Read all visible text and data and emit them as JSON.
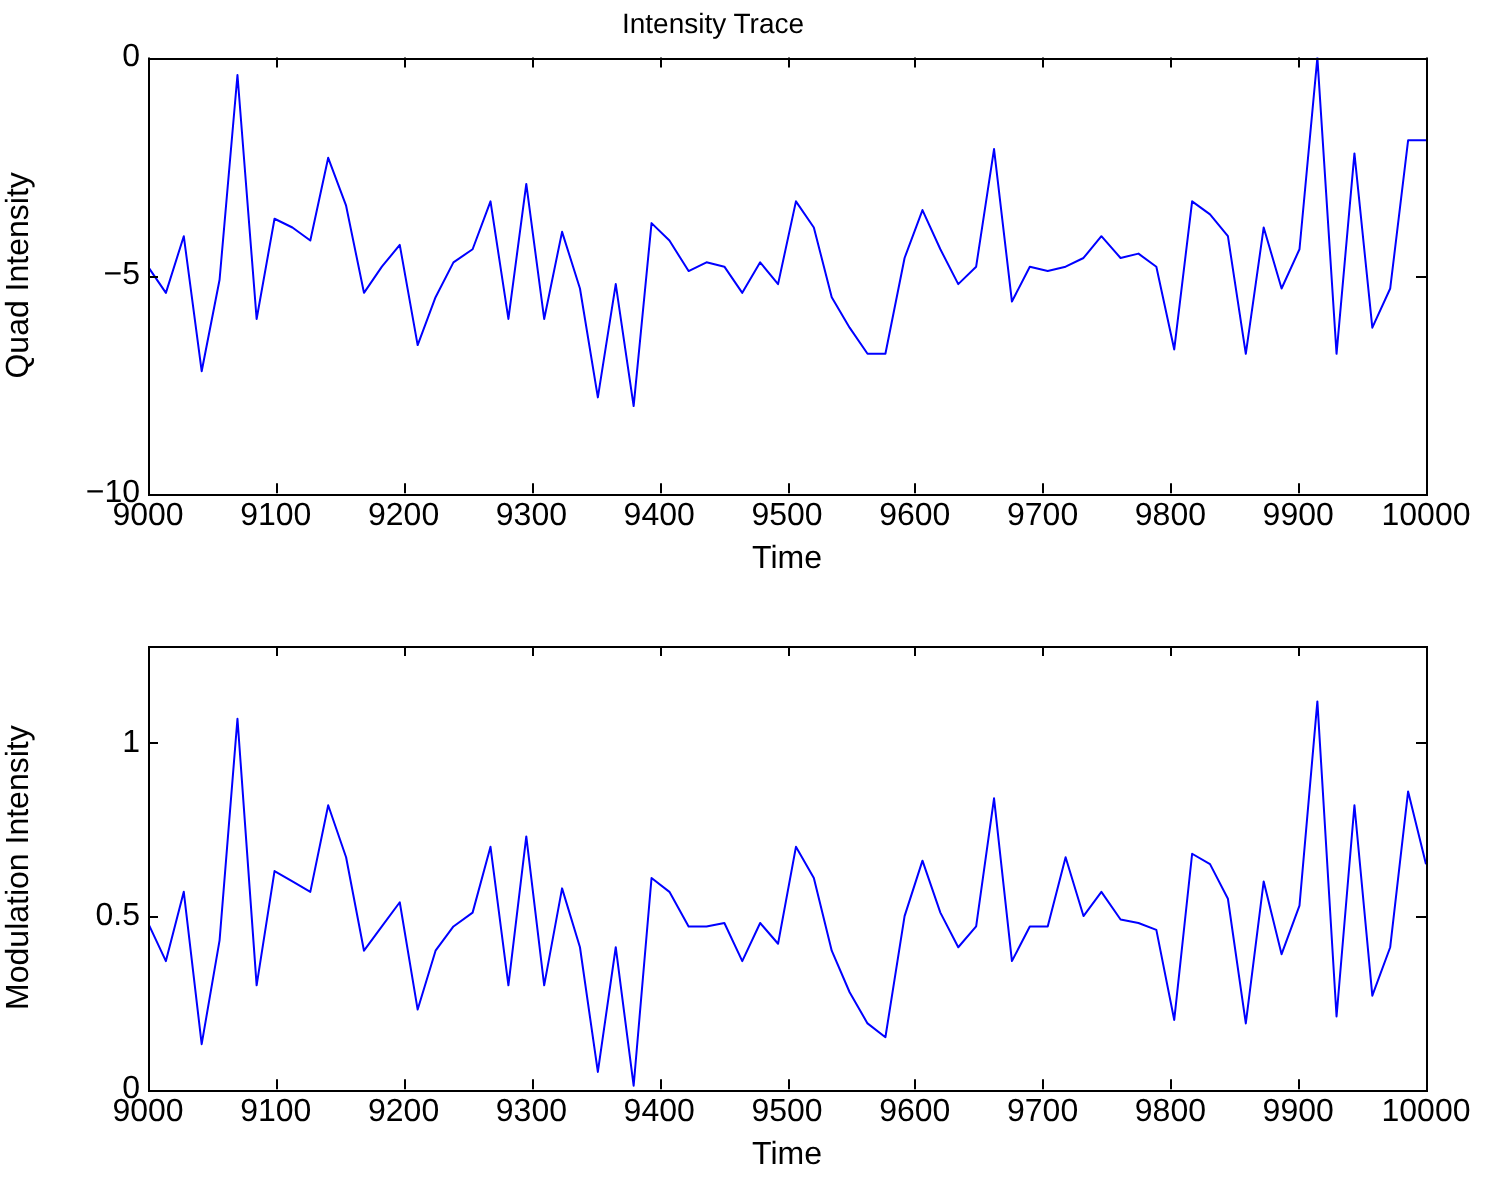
{
  "chart_data": [
    {
      "type": "line",
      "title": "Intensity Trace",
      "xlabel": "Time",
      "ylabel": "Quad Intensity",
      "x": [
        9000,
        9014,
        9028,
        9042,
        9056,
        9070,
        9085,
        9099,
        9113,
        9127,
        9141,
        9155,
        9169,
        9183,
        9197,
        9211,
        9225,
        9239,
        9254,
        9268,
        9282,
        9296,
        9310,
        9324,
        9338,
        9352,
        9366,
        9380,
        9394,
        9408,
        9423,
        9437,
        9451,
        9465,
        9479,
        9493,
        9507,
        9521,
        9535,
        9549,
        9563,
        9577,
        9592,
        9606,
        9620,
        9634,
        9648,
        9662,
        9676,
        9690,
        9704,
        9718,
        9732,
        9746,
        9761,
        9775,
        9789,
        9803,
        9817,
        9831,
        9845,
        9859,
        9873,
        9887,
        9901,
        9915,
        9930,
        9944,
        9958,
        9972,
        9986,
        10000
      ],
      "series": [
        {
          "color": "#0000ff",
          "values": [
            -4.8,
            -5.4,
            -4.1,
            -7.2,
            -5.1,
            -0.4,
            -6.0,
            -3.7,
            -3.9,
            -4.2,
            -2.3,
            -3.4,
            -5.4,
            -4.8,
            -4.3,
            -6.6,
            -5.5,
            -4.7,
            -4.4,
            -3.3,
            -6.0,
            -2.9,
            -6.0,
            -4.0,
            -5.3,
            -7.8,
            -5.2,
            -8.0,
            -3.8,
            -4.2,
            -4.9,
            -4.7,
            -4.8,
            -5.4,
            -4.7,
            -5.2,
            -3.3,
            -3.9,
            -5.5,
            -6.2,
            -6.8,
            -6.8,
            -4.6,
            -3.5,
            -4.4,
            -5.2,
            -4.8,
            -2.1,
            -5.6,
            -4.8,
            -4.9,
            -4.8,
            -4.6,
            -4.1,
            -4.6,
            -4.5,
            -4.8,
            -6.7,
            -3.3,
            -3.6,
            -4.1,
            -6.8,
            -3.9,
            -5.3,
            -4.4,
            0.0,
            -6.8,
            -2.2,
            -6.2,
            -5.3,
            -1.9,
            -1.9
          ]
        }
      ],
      "xlim": [
        9000,
        10000
      ],
      "xticks": [
        9000,
        9100,
        9200,
        9300,
        9400,
        9500,
        9600,
        9700,
        9800,
        9900,
        10000
      ],
      "ylim": [
        -10,
        0
      ],
      "yticks": [
        -10,
        -5,
        0
      ],
      "legend": false,
      "line_style": "solid",
      "marker": "none"
    },
    {
      "type": "line",
      "xlabel": "Time",
      "ylabel": "Modulation Intensity",
      "x": [
        9000,
        9014,
        9028,
        9042,
        9056,
        9070,
        9085,
        9099,
        9113,
        9127,
        9141,
        9155,
        9169,
        9183,
        9197,
        9211,
        9225,
        9239,
        9254,
        9268,
        9282,
        9296,
        9310,
        9324,
        9338,
        9352,
        9366,
        9380,
        9394,
        9408,
        9423,
        9437,
        9451,
        9465,
        9479,
        9493,
        9507,
        9521,
        9535,
        9549,
        9563,
        9577,
        9592,
        9606,
        9620,
        9634,
        9648,
        9662,
        9676,
        9690,
        9704,
        9718,
        9732,
        9746,
        9761,
        9775,
        9789,
        9803,
        9817,
        9831,
        9845,
        9859,
        9873,
        9887,
        9901,
        9915,
        9930,
        9944,
        9958,
        9972,
        9986,
        10000
      ],
      "series": [
        {
          "color": "#0000ff",
          "values": [
            0.48,
            0.37,
            0.57,
            0.13,
            0.43,
            1.07,
            0.3,
            0.63,
            0.6,
            0.57,
            0.82,
            0.67,
            0.4,
            0.47,
            0.54,
            0.23,
            0.4,
            0.47,
            0.51,
            0.7,
            0.3,
            0.73,
            0.3,
            0.58,
            0.41,
            0.05,
            0.41,
            0.01,
            0.61,
            0.57,
            0.47,
            0.47,
            0.48,
            0.37,
            0.48,
            0.42,
            0.7,
            0.61,
            0.4,
            0.28,
            0.19,
            0.15,
            0.5,
            0.66,
            0.51,
            0.41,
            0.47,
            0.84,
            0.37,
            0.47,
            0.47,
            0.67,
            0.5,
            0.57,
            0.49,
            0.48,
            0.46,
            0.2,
            0.68,
            0.65,
            0.55,
            0.19,
            0.6,
            0.39,
            0.53,
            1.12,
            0.21,
            0.82,
            0.27,
            0.41,
            0.86,
            0.65
          ]
        }
      ],
      "xlim": [
        9000,
        10000
      ],
      "xticks": [
        9000,
        9100,
        9200,
        9300,
        9400,
        9500,
        9600,
        9700,
        9800,
        9900,
        10000
      ],
      "ylim": [
        0,
        1.28
      ],
      "yticks": [
        0,
        0.5,
        1
      ],
      "legend": false,
      "line_style": "solid",
      "marker": "none"
    }
  ]
}
